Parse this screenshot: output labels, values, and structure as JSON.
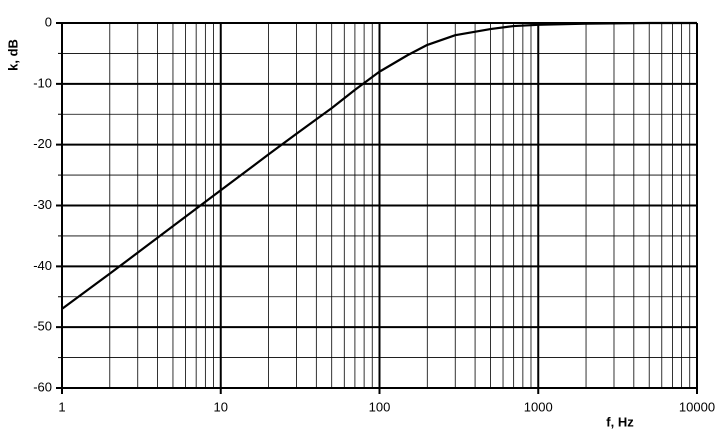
{
  "chart_data": {
    "type": "line",
    "x": [
      1,
      2,
      5,
      10,
      20,
      30,
      50,
      70,
      100,
      150,
      200,
      300,
      500,
      700,
      1000,
      2000,
      5000,
      10000
    ],
    "values": [
      -47,
      -41.2,
      -33.4,
      -27.5,
      -21.6,
      -18.2,
      -14,
      -11,
      -8,
      -5.3,
      -3.6,
      -2,
      -1,
      -0.5,
      -0.3,
      -0.1,
      0,
      0
    ],
    "color": "#000000",
    "xlabel": "f, Hz",
    "ylabel": "k, dB",
    "xlim": [
      1,
      10000
    ],
    "xticks": [
      1,
      10,
      100,
      1000,
      10000
    ],
    "xlog": true,
    "ylim": [
      -60,
      0
    ],
    "yticks": [
      0,
      -10,
      -20,
      -30,
      -40,
      -50,
      -60
    ],
    "grid": true,
    "minor_grid": true
  }
}
